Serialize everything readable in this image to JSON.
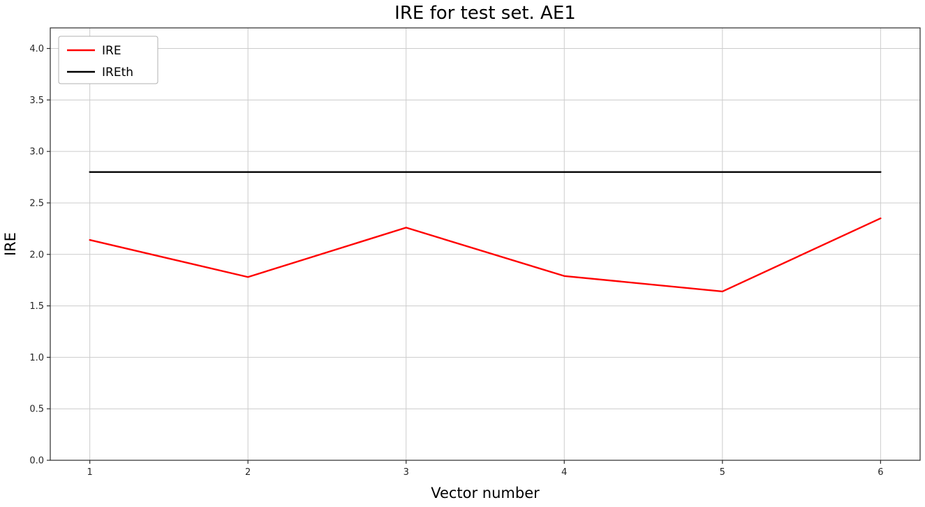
{
  "chart_data": {
    "type": "line",
    "title": "IRE for test set. AE1",
    "xlabel": "Vector number",
    "ylabel": "IRE",
    "x": [
      1,
      2,
      3,
      4,
      5,
      6
    ],
    "series": [
      {
        "name": "IRE",
        "color": "#ff0000",
        "values": [
          2.14,
          1.78,
          2.26,
          1.79,
          1.64,
          2.35
        ]
      },
      {
        "name": "IREth",
        "color": "#000000",
        "values": [
          2.8,
          2.8,
          2.8,
          2.8,
          2.8,
          2.8
        ]
      }
    ],
    "xticks": [
      1,
      2,
      3,
      4,
      5,
      6
    ],
    "yticks": [
      0.0,
      0.5,
      1.0,
      1.5,
      2.0,
      2.5,
      3.0,
      3.5,
      4.0
    ],
    "xlim": [
      0.75,
      6.25
    ],
    "ylim": [
      0.0,
      4.2
    ],
    "grid": true,
    "legend_position": "upper-left",
    "grid_color": "#cccccc",
    "spine_color": "#2b2b2b",
    "tick_label_color": "#262626"
  }
}
